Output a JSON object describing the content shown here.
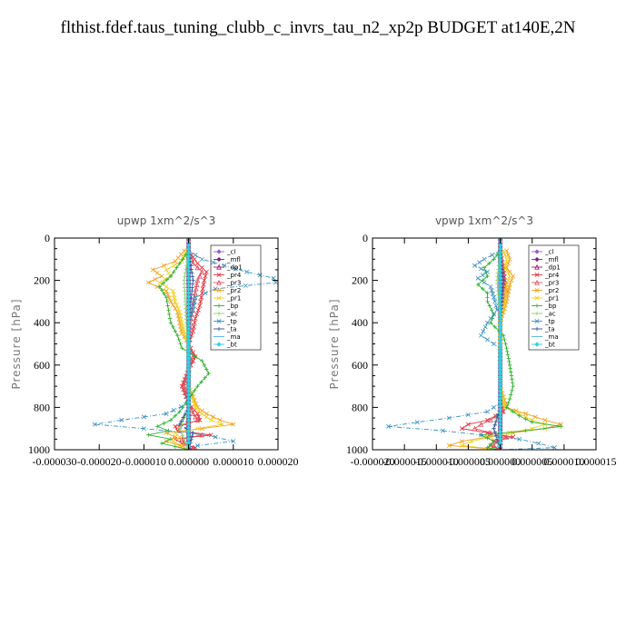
{
  "page_title": "flthist.fdef.taus_tuning_clubb_c_invrs_tau_n2_xp2p  BUDGET at140E,2N",
  "legend": [
    {
      "label": "_cl",
      "color": "#9b59d0",
      "marker": "diamond"
    },
    {
      "label": "_mfl",
      "color": "#7b1f8a",
      "marker": "diamond"
    },
    {
      "label": "_dp1",
      "color": "#a0166a",
      "marker": "triangle"
    },
    {
      "label": "_pr4",
      "color": "#e0303a",
      "marker": "x"
    },
    {
      "label": "_pr3",
      "color": "#e05060",
      "marker": "triangle"
    },
    {
      "label": "_pr2",
      "color": "#f0a020",
      "marker": "x"
    },
    {
      "label": "_pr1",
      "color": "#f0d020",
      "marker": "x"
    },
    {
      "label": "_bp",
      "color": "#30b030",
      "marker": "plus"
    },
    {
      "label": "_ac",
      "color": "#90d070",
      "marker": "plus"
    },
    {
      "label": "_tp",
      "color": "#3a8fc0",
      "marker": "x"
    },
    {
      "label": "_ta",
      "color": "#3050a0",
      "marker": "plus"
    },
    {
      "label": "_ma",
      "color": "#50b0d0",
      "marker": "none"
    },
    {
      "label": "_bt",
      "color": "#30d0e0",
      "marker": "diamond"
    }
  ],
  "chart_data": [
    {
      "type": "line",
      "title": "upwp   1xm^2/s^3",
      "ylabel": "Pressure [hPa]",
      "xlim": [
        -3e-05,
        2e-05
      ],
      "ylim": [
        1000,
        0
      ],
      "xticks": [
        "-0.000030",
        "-0.000020",
        "-0.000010",
        "0.000000",
        "0.000010",
        "0.000020"
      ],
      "yticks": [
        "0",
        "200",
        "400",
        "600",
        "800",
        "1000"
      ],
      "legend_position": "top-right",
      "series": [
        {
          "name": "_cl",
          "y": [
            0,
            200,
            400,
            600,
            800,
            1000
          ],
          "x": [
            0,
            0,
            0,
            0,
            0,
            0
          ]
        },
        {
          "name": "_mfl",
          "y": [
            0,
            200,
            400,
            600,
            800,
            1000
          ],
          "x": [
            0,
            0,
            0,
            0,
            0,
            0
          ]
        },
        {
          "name": "_dp1",
          "y": [
            0,
            200,
            400,
            600,
            800,
            1000
          ],
          "x": [
            0,
            0,
            0,
            0,
            0,
            0
          ]
        },
        {
          "name": "_pr4",
          "y": [
            60,
            120,
            160,
            200,
            260,
            320,
            380,
            440,
            500,
            560,
            620,
            700,
            780,
            830,
            860,
            890,
            910,
            930,
            950,
            970,
            990,
            1000
          ],
          "x": [
            0,
            2e-06,
            4e-06,
            3.5e-06,
            3e-06,
            2.5e-06,
            1.5e-06,
            1e-06,
            0,
            1.5e-06,
            0,
            -1.5e-06,
            0,
            2e-06,
            2.5e-06,
            -3e-06,
            -2.5e-06,
            5e-06,
            -3e-06,
            -1.5e-06,
            1.5e-06,
            0
          ]
        },
        {
          "name": "_pr3",
          "y": [
            60,
            120,
            160,
            200,
            260,
            320,
            380,
            440,
            500,
            560,
            620,
            700,
            780,
            830,
            860,
            890,
            910,
            930,
            950,
            970,
            990,
            1000
          ],
          "x": [
            0,
            1e-06,
            3e-06,
            2e-06,
            1.5e-06,
            1e-06,
            5e-07,
            3e-07,
            0,
            1e-06,
            0,
            -1e-06,
            0,
            1e-06,
            2e-06,
            -2e-06,
            -2e-06,
            3e-06,
            -1.5e-06,
            -1e-06,
            1e-06,
            0
          ]
        },
        {
          "name": "_pr2",
          "y": [
            60,
            110,
            150,
            180,
            210,
            250,
            300,
            350,
            400,
            450,
            500,
            600,
            700,
            800,
            830,
            860,
            880,
            900,
            920,
            940,
            960,
            980,
            1000
          ],
          "x": [
            -1e-06,
            -3e-06,
            -8e-06,
            -6e-06,
            -9e-06,
            -5e-06,
            -4e-06,
            -2.5e-06,
            -2e-06,
            -1.5e-06,
            0,
            0,
            0,
            2e-06,
            4e-06,
            7e-06,
            1e-05,
            3e-06,
            -5e-06,
            -3e-06,
            -5e-06,
            -2e-06,
            0
          ]
        },
        {
          "name": "_pr1",
          "y": [
            60,
            110,
            150,
            180,
            210,
            250,
            300,
            350,
            400,
            450,
            500,
            600,
            700,
            800,
            830,
            860,
            880,
            900,
            920,
            940,
            960,
            980,
            1000
          ],
          "x": [
            -5e-07,
            -1.5e-06,
            -5e-06,
            -4e-06,
            -6.5e-06,
            -3.5e-06,
            -3e-06,
            -2e-06,
            -1.5e-06,
            -1e-06,
            0,
            0,
            0,
            1.5e-06,
            3e-06,
            5e-06,
            7.5e-06,
            2e-06,
            -3e-06,
            -2e-06,
            -3.5e-06,
            -1.5e-06,
            0
          ]
        },
        {
          "name": "_bp",
          "y": [
            60,
            120,
            180,
            230,
            280,
            340,
            400,
            460,
            520,
            580,
            640,
            700,
            760,
            820,
            860,
            890,
            910,
            930,
            950,
            970,
            1000
          ],
          "x": [
            0,
            -2e-06,
            -4e-06,
            -6.5e-06,
            -5e-06,
            -4.5e-06,
            -4e-06,
            -2.5e-06,
            -1.5e-06,
            3e-06,
            4.5e-06,
            2e-06,
            0,
            -2e-06,
            -4e-06,
            -7e-06,
            -4.5e-06,
            -9e-06,
            -4e-06,
            -6e-06,
            0
          ]
        },
        {
          "name": "_ac",
          "y": [
            60,
            200,
            400,
            600,
            800,
            900,
            950,
            1000
          ],
          "x": [
            0,
            -1e-06,
            -5e-07,
            0,
            0,
            -2e-06,
            -1e-06,
            0
          ]
        },
        {
          "name": "_tp",
          "y": [
            60,
            100,
            130,
            160,
            190,
            210,
            240,
            280,
            340,
            400,
            460,
            520,
            600,
            700,
            780,
            830,
            860,
            880,
            900,
            920,
            940,
            960,
            980,
            1000
          ],
          "x": [
            0,
            3e-06,
            8e-06,
            1.3e-05,
            1.9e-05,
            1.95e-05,
            6e-06,
            1.5e-06,
            1e-06,
            0,
            0,
            0,
            0,
            0,
            0,
            -5e-06,
            -1.5e-05,
            -2.1e-05,
            -1e-05,
            0,
            6e-06,
            1e-05,
            2e-06,
            0
          ]
        },
        {
          "name": "_ta",
          "y": [
            60,
            200,
            400,
            600,
            800,
            880,
            920,
            1000
          ],
          "x": [
            0,
            1e-06,
            0,
            0,
            0,
            -2e-06,
            1e-06,
            0
          ]
        },
        {
          "name": "_ma",
          "y": [
            0,
            1000
          ],
          "x": [
            0,
            0
          ]
        },
        {
          "name": "_bt",
          "y": [
            0,
            1000
          ],
          "x": [
            0,
            0
          ]
        }
      ]
    },
    {
      "type": "line",
      "title": "vpwp   1xm^2/s^3",
      "ylabel": "Pressure [hPa]",
      "xlim": [
        -2e-05,
        1.5e-05
      ],
      "ylim": [
        1000,
        0
      ],
      "xticks": [
        "-0.000020",
        "-0.000015",
        "-0.000010",
        "-0.000005",
        "0.000000",
        "0.000005",
        "0.000010",
        "0.000015"
      ],
      "yticks": [
        "0",
        "200",
        "400",
        "600",
        "800",
        "1000"
      ],
      "legend_position": "top-right",
      "series": [
        {
          "name": "_cl",
          "y": [
            0,
            200,
            400,
            600,
            800,
            1000
          ],
          "x": [
            0,
            0,
            0,
            0,
            0,
            0
          ]
        },
        {
          "name": "_mfl",
          "y": [
            0,
            200,
            400,
            600,
            800,
            1000
          ],
          "x": [
            0,
            0,
            0,
            0,
            0,
            0
          ]
        },
        {
          "name": "_dp1",
          "y": [
            0,
            200,
            400,
            600,
            800,
            1000
          ],
          "x": [
            0,
            0,
            0,
            0,
            0,
            0
          ]
        },
        {
          "name": "_pr4",
          "y": [
            60,
            150,
            250,
            350,
            450,
            550,
            650,
            750,
            820,
            860,
            880,
            900,
            920,
            940,
            960,
            980,
            1000
          ],
          "x": [
            0,
            5e-07,
            1e-06,
            0,
            0,
            0,
            0,
            0,
            5e-07,
            -2e-06,
            -5e-06,
            -6e-06,
            -2e-06,
            2e-06,
            -1e-06,
            -1.5e-06,
            0
          ]
        },
        {
          "name": "_pr3",
          "y": [
            60,
            150,
            250,
            350,
            450,
            550,
            650,
            750,
            820,
            860,
            880,
            900,
            920,
            940,
            960,
            980,
            1000
          ],
          "x": [
            0,
            3e-07,
            6e-07,
            0,
            0,
            0,
            0,
            0,
            3e-07,
            -1.5e-06,
            -3e-06,
            -4e-06,
            -1.5e-06,
            1e-06,
            -5e-07,
            -1e-06,
            0
          ]
        },
        {
          "name": "_pr2",
          "y": [
            60,
            100,
            140,
            180,
            220,
            300,
            400,
            500,
            600,
            700,
            800,
            830,
            860,
            880,
            900,
            920,
            940,
            960,
            980,
            1000
          ],
          "x": [
            1e-06,
            1.5e-06,
            1e-06,
            2e-06,
            1.5e-06,
            1e-06,
            0,
            0,
            0,
            0,
            1e-06,
            4e-06,
            7e-06,
            9.5e-06,
            7e-06,
            2e-06,
            -2e-06,
            -6e-06,
            -8e-06,
            0
          ]
        },
        {
          "name": "_pr1",
          "y": [
            60,
            100,
            140,
            180,
            220,
            300,
            400,
            500,
            600,
            700,
            800,
            830,
            860,
            880,
            900,
            920,
            940,
            960,
            980,
            1000
          ],
          "x": [
            5e-07,
            1e-06,
            8e-07,
            1.5e-06,
            1e-06,
            7e-07,
            0,
            0,
            0,
            0,
            7e-07,
            3e-06,
            5e-06,
            7e-06,
            5e-06,
            1.5e-06,
            -1.5e-06,
            -4.5e-06,
            -6e-06,
            0
          ]
        },
        {
          "name": "_bp",
          "y": [
            60,
            100,
            140,
            180,
            220,
            260,
            300,
            360,
            400,
            460,
            520,
            600,
            700,
            760,
            800,
            840,
            870,
            890,
            910,
            930,
            960,
            990,
            1000
          ],
          "x": [
            0,
            -1e-06,
            -2.5e-06,
            -2e-06,
            -3.5e-06,
            -2e-06,
            -2e-06,
            -1e-06,
            -1.5e-06,
            5e-07,
            1e-06,
            1.5e-06,
            2e-06,
            1.5e-06,
            1e-06,
            3e-06,
            5e-06,
            9.5e-06,
            4e-06,
            -3e-06,
            -1e-06,
            -2e-06,
            0
          ]
        },
        {
          "name": "_ac",
          "y": [
            60,
            200,
            400,
            600,
            800,
            900,
            1000
          ],
          "x": [
            0,
            -5e-07,
            0,
            0,
            0,
            -1e-06,
            0
          ]
        },
        {
          "name": "_tp",
          "y": [
            60,
            100,
            130,
            160,
            190,
            230,
            280,
            340,
            400,
            460,
            520,
            600,
            700,
            780,
            820,
            850,
            870,
            890,
            910,
            930,
            950,
            970,
            990,
            1000
          ],
          "x": [
            0,
            -2.5e-06,
            -4e-06,
            -2e-06,
            -3.5e-06,
            -1.5e-06,
            -1e-06,
            -5e-07,
            -2e-06,
            -3e-06,
            0,
            0,
            0,
            0,
            -2e-06,
            -8e-06,
            -1.3e-05,
            -1.75e-05,
            -9e-06,
            -3e-06,
            3e-06,
            6e-06,
            8.5e-06,
            0
          ]
        },
        {
          "name": "_ta",
          "y": [
            60,
            200,
            400,
            600,
            800,
            900,
            1000
          ],
          "x": [
            0,
            5e-07,
            0,
            0,
            0,
            -1e-06,
            0
          ]
        },
        {
          "name": "_ma",
          "y": [
            0,
            1000
          ],
          "x": [
            0,
            0
          ]
        },
        {
          "name": "_bt",
          "y": [
            0,
            1000
          ],
          "x": [
            0,
            0
          ]
        }
      ]
    }
  ]
}
